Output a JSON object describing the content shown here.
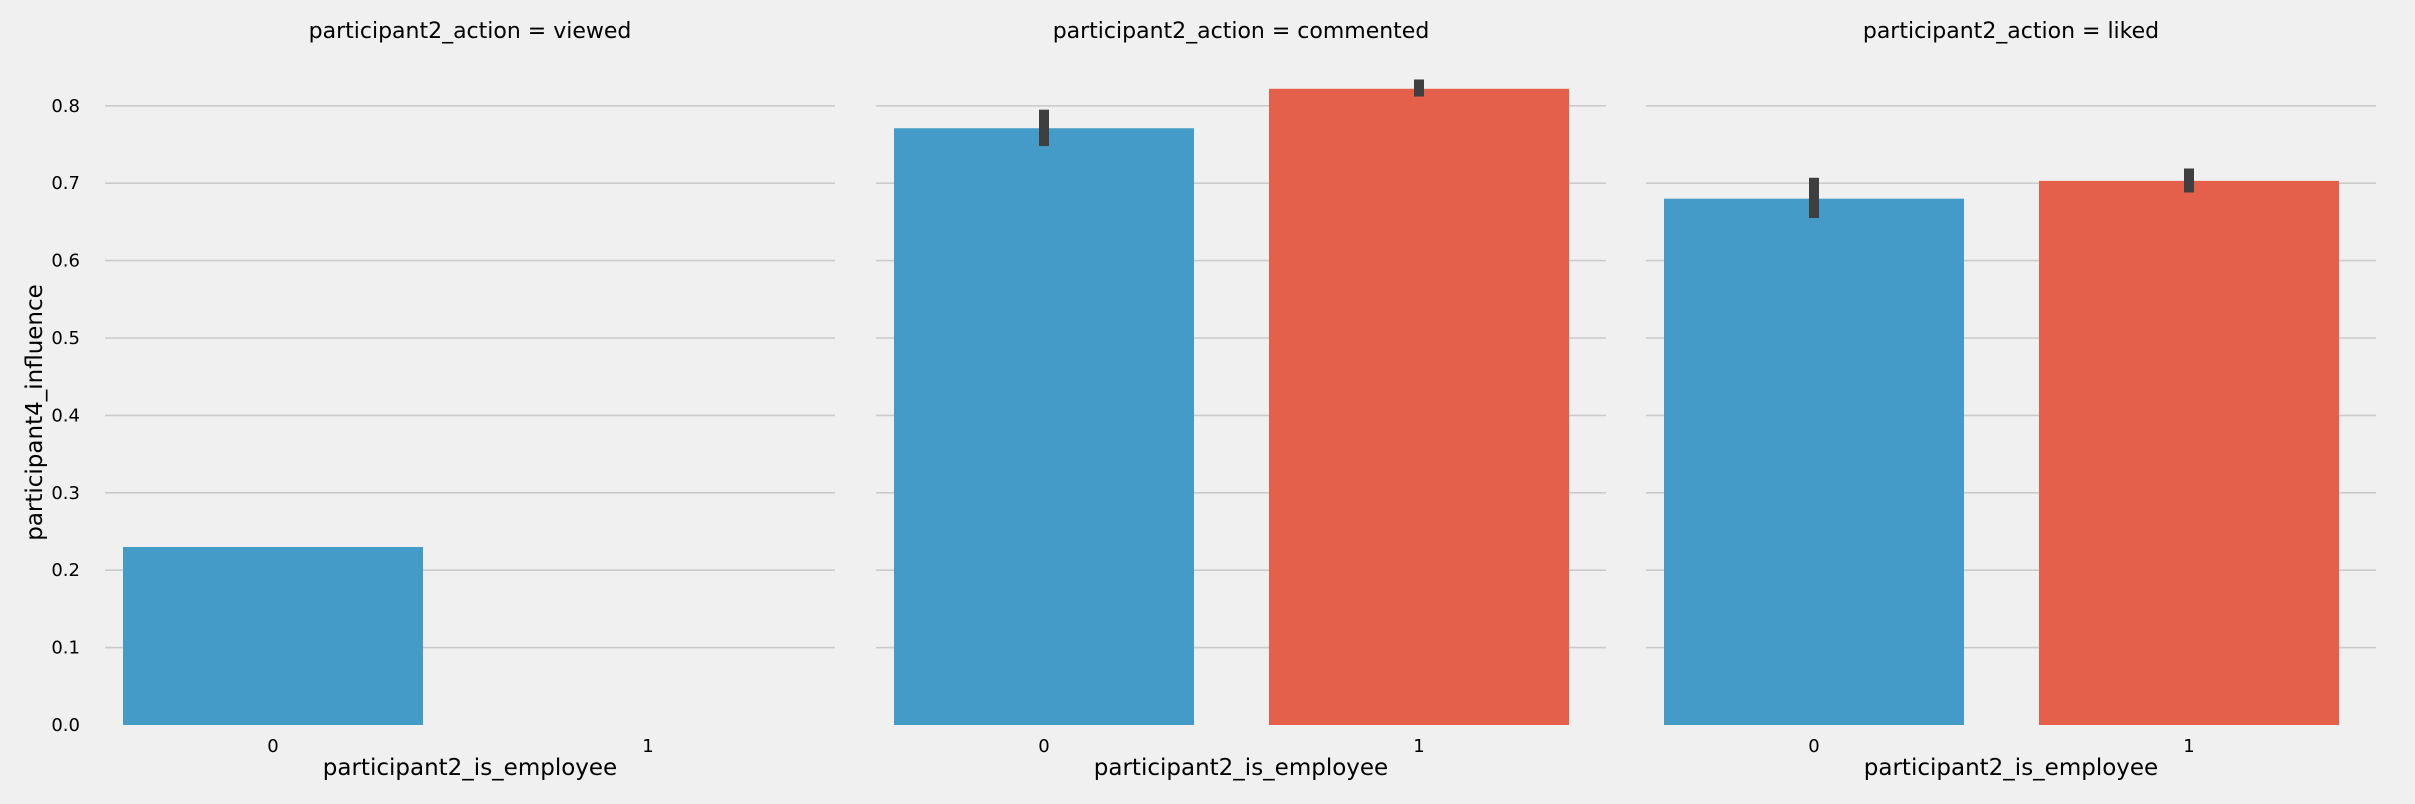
{
  "chart_data": {
    "type": "bar",
    "facet_variable": "participant2_action",
    "xlabel": "participant2_is_employee",
    "ylabel": "participant4_influence",
    "categories": [
      "0",
      "1"
    ],
    "ylim": [
      0,
      0.85
    ],
    "yticks": [
      "0.0",
      "0.1",
      "0.2",
      "0.3",
      "0.4",
      "0.5",
      "0.6",
      "0.7",
      "0.8"
    ],
    "grid": true,
    "colors": {
      "0": "#459bc8",
      "1": "#e4604a",
      "error_bar": "#3f3f3f",
      "gridline": "#cbcbcb",
      "background": "#f0f0f0"
    },
    "panels": [
      {
        "title": "participant2_action = viewed",
        "bars": [
          {
            "category": "0",
            "value": 0.23,
            "ci": null
          },
          {
            "category": "1",
            "value": null,
            "ci": null
          }
        ]
      },
      {
        "title": "participant2_action = commented",
        "bars": [
          {
            "category": "0",
            "value": 0.771,
            "ci": [
              0.748,
              0.795
            ]
          },
          {
            "category": "1",
            "value": 0.822,
            "ci": [
              0.812,
              0.834
            ]
          }
        ]
      },
      {
        "title": "participant2_action = liked",
        "bars": [
          {
            "category": "0",
            "value": 0.68,
            "ci": [
              0.655,
              0.707
            ]
          },
          {
            "category": "1",
            "value": 0.703,
            "ci": [
              0.688,
              0.719
            ]
          }
        ]
      }
    ]
  }
}
